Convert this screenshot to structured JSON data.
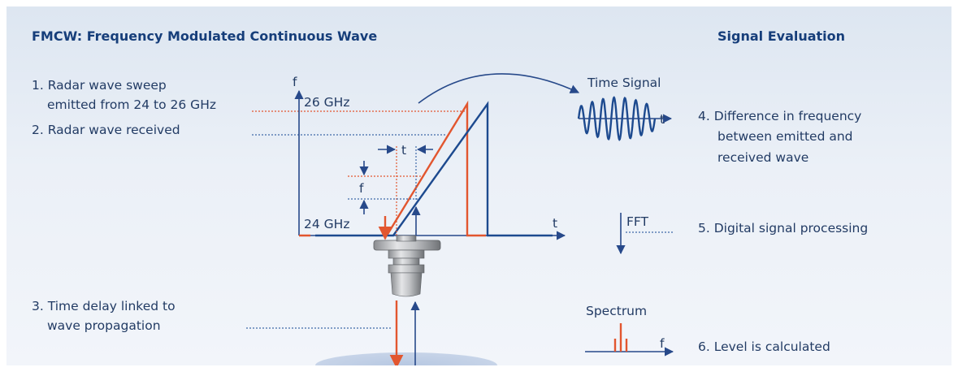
{
  "header": {
    "left_title": "FMCW: Frequency Modulated Continuous Wave",
    "right_title": "Signal Evaluation"
  },
  "steps": [
    {
      "line1": "1. Radar wave sweep",
      "line2": "emitted from 24 to 26 GHz"
    },
    {
      "line1": "2. Radar wave received"
    },
    {
      "line1": "3. Time delay linked to",
      "line2": "wave propagation"
    },
    {
      "line1": "4. Difference in frequency",
      "line2": "between emitted and",
      "line3": "received wave"
    },
    {
      "line1": "5. Digital signal processing"
    },
    {
      "line1": "6. Level is calculated"
    }
  ],
  "plot": {
    "y_axis_label": "f",
    "x_axis_label": "t",
    "freq_high": "26 GHz",
    "freq_low": "24 GHz",
    "delta_t_label": "t",
    "delta_f_label": "f"
  },
  "evaluation": {
    "time_signal_label": "Time Signal",
    "time_signal_axis": "t",
    "fft_label": "FFT",
    "spectrum_label": "Spectrum",
    "spectrum_axis": "f"
  },
  "colors": {
    "emitted": "#e2562f",
    "received": "#1d4a8f",
    "title": "#163e7a"
  }
}
